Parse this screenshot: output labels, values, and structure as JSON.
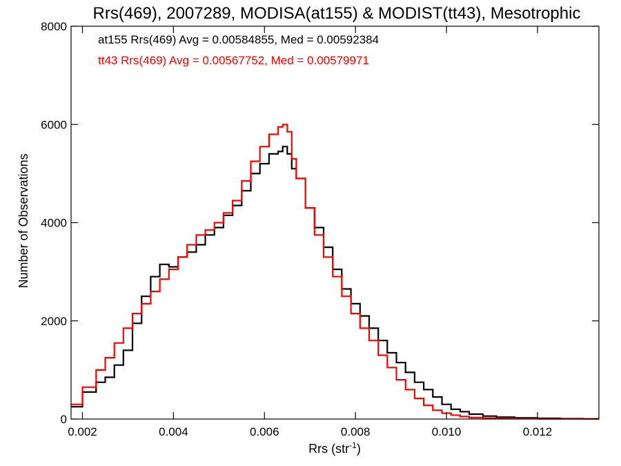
{
  "chart_data": {
    "type": "line",
    "style": "step-histogram",
    "title": "Rrs(469), 2007289, MODISA(at155) & MODIST(tt43), Mesotrophic",
    "xlabel_base": "Rrs (str",
    "xlabel_sup": "-1",
    "xlabel_tail": ")",
    "ylabel": "Number of Observations",
    "xlim": [
      0.00175,
      0.01335
    ],
    "ylim": [
      0,
      8000
    ],
    "xticks": [
      0.002,
      0.004,
      0.006,
      0.008,
      0.01,
      0.012
    ],
    "xtick_labels": [
      "0.002",
      "0.004",
      "0.006",
      "0.008",
      "0.010",
      "0.012"
    ],
    "yticks": [
      0,
      2000,
      4000,
      6000,
      8000
    ],
    "ytick_labels": [
      "0",
      "2000",
      "4000",
      "6000",
      "8000"
    ],
    "grid": false,
    "legend_placement": "top-left",
    "series": [
      {
        "name": "at155",
        "legend_text": "at155 Rrs(469) Avg = 0.00584855, Med = 0.00592384",
        "color": "#000000",
        "x": [
          0.00175,
          0.002,
          0.0023,
          0.0025,
          0.0027,
          0.0029,
          0.0031,
          0.0033,
          0.0035,
          0.0037,
          0.0039,
          0.0041,
          0.0043,
          0.0045,
          0.0047,
          0.0049,
          0.0051,
          0.0053,
          0.0055,
          0.0057,
          0.0059,
          0.0061,
          0.0063,
          0.0064,
          0.0065,
          0.0066,
          0.0067,
          0.0069,
          0.0071,
          0.0073,
          0.0075,
          0.0077,
          0.0079,
          0.0081,
          0.0083,
          0.0085,
          0.0087,
          0.0089,
          0.0091,
          0.0093,
          0.0095,
          0.0097,
          0.0099,
          0.0101,
          0.0103,
          0.0105,
          0.0108,
          0.0111,
          0.0115,
          0.012,
          0.0125,
          0.013,
          0.01335
        ],
        "values": [
          250,
          550,
          750,
          850,
          1100,
          1400,
          1950,
          2500,
          2900,
          3150,
          3100,
          3300,
          3400,
          3550,
          3750,
          3900,
          4150,
          4350,
          4650,
          5000,
          5200,
          5400,
          5450,
          5550,
          5400,
          5100,
          4900,
          4300,
          3900,
          3500,
          3050,
          2650,
          2350,
          2100,
          1850,
          1600,
          1350,
          1150,
          950,
          750,
          600,
          450,
          300,
          200,
          150,
          100,
          60,
          40,
          25,
          15,
          10,
          5,
          5
        ]
      },
      {
        "name": "tt43",
        "legend_text": "tt43 Rrs(469) Avg = 0.00567752, Med = 0.00579971",
        "color": "#ff0000",
        "x": [
          0.00175,
          0.002,
          0.0023,
          0.0025,
          0.0027,
          0.0029,
          0.0031,
          0.0033,
          0.0035,
          0.0037,
          0.0039,
          0.0041,
          0.0043,
          0.0045,
          0.0047,
          0.0049,
          0.0051,
          0.0053,
          0.0055,
          0.0057,
          0.0059,
          0.0061,
          0.0063,
          0.0064,
          0.0065,
          0.0066,
          0.0067,
          0.0069,
          0.0071,
          0.0073,
          0.0075,
          0.0077,
          0.0079,
          0.0081,
          0.0083,
          0.0085,
          0.0087,
          0.0089,
          0.0091,
          0.0093,
          0.0095,
          0.0097,
          0.0099,
          0.0101,
          0.0103,
          0.0105,
          0.0108,
          0.0111,
          0.0115,
          0.012,
          0.0125,
          0.013,
          0.01335
        ],
        "values": [
          300,
          650,
          1000,
          1250,
          1550,
          1850,
          2150,
          2350,
          2600,
          2850,
          3050,
          3300,
          3550,
          3750,
          3850,
          4000,
          4200,
          4450,
          4850,
          5250,
          5550,
          5800,
          5950,
          6000,
          5850,
          5300,
          4900,
          4300,
          3750,
          3300,
          2900,
          2500,
          2150,
          1850,
          1600,
          1300,
          1050,
          800,
          600,
          420,
          280,
          180,
          120,
          80,
          50,
          30,
          20,
          15,
          10,
          5,
          5,
          5,
          5
        ]
      }
    ]
  }
}
